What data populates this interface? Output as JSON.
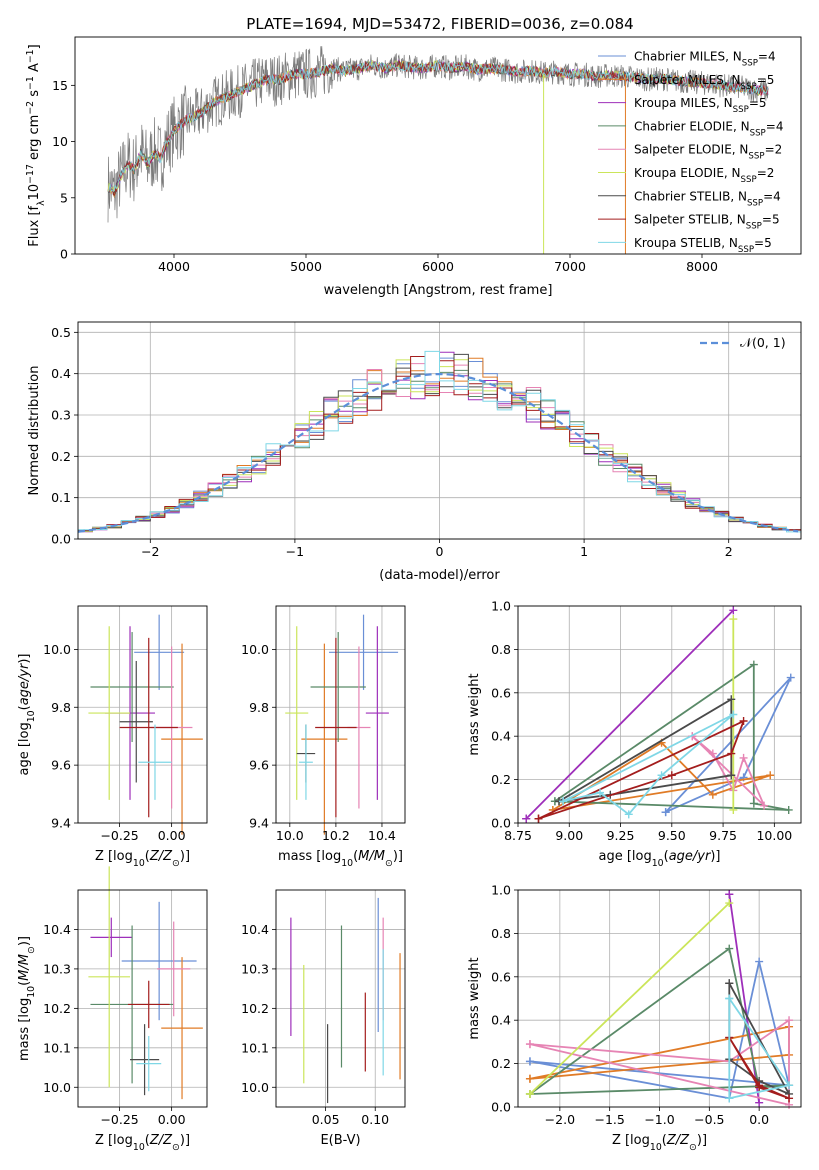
{
  "figure": {
    "title": "PLATE=1694, MJD=53472, FIBERID=0036, z=0.084"
  },
  "colors": {
    "axis": "#000000",
    "grid": "#b0b0b0",
    "gauss": "#5b8fd9",
    "series": [
      "#6a8fd6",
      "#e07b26",
      "#9e2fba",
      "#5a8a68",
      "#e684b4",
      "#cbe55a",
      "#4a4a4a",
      "#a31d1d",
      "#7fd7e6"
    ]
  },
  "chart_data": [
    {
      "id": "spectrum",
      "type": "line",
      "xlabel": "wavelength [Angstrom, rest frame]",
      "ylabel": "Flux [f_λ10^-17 erg cm^-2 s^-1 A^-1]",
      "xlim": [
        3250,
        8750
      ],
      "ylim": [
        0,
        19.3
      ],
      "xticks": [
        4000,
        5000,
        6000,
        7000,
        8000
      ],
      "yticks": [
        0,
        5,
        10,
        15
      ],
      "grid": false,
      "legend_position": "right",
      "observed": {
        "x": [
          3500,
          3550,
          3600,
          3650,
          3700,
          3750,
          3800,
          3850,
          3900,
          3950,
          4000,
          4100,
          4200,
          4300,
          4400,
          4500,
          4600,
          4700,
          4800,
          4900,
          5000,
          5100,
          5200,
          5300,
          5400,
          5500,
          5600,
          5700,
          5800,
          5900,
          6000,
          6100,
          6200,
          6300,
          6400,
          6500,
          6600,
          6700,
          6800,
          6900,
          7000,
          7100,
          7200,
          7300,
          7400,
          7500,
          7600,
          7700,
          7800,
          7900,
          8000,
          8100,
          8200,
          8300,
          8400,
          8500
        ],
        "y": [
          6.0,
          5.5,
          7.0,
          8.0,
          7.5,
          9.0,
          8.0,
          9.0,
          8.5,
          10.0,
          11.0,
          12.0,
          12.5,
          13.5,
          14.0,
          14.5,
          15.0,
          15.5,
          15.5,
          16.0,
          16.0,
          16.2,
          16.5,
          16.3,
          16.5,
          16.8,
          16.5,
          16.8,
          16.6,
          16.5,
          16.8,
          16.5,
          16.7,
          16.4,
          16.5,
          16.4,
          16.2,
          16.3,
          16.1,
          16.2,
          16.0,
          16.0,
          15.8,
          15.9,
          15.8,
          15.7,
          15.5,
          15.6,
          15.4,
          15.3,
          15.2,
          15.1,
          14.9,
          14.8,
          14.6,
          14.5
        ]
      },
      "series": [
        {
          "name": "Chabrier MILES, N_SSP=4",
          "label_main": "Chabrier MILES, N",
          "label_sub": "SSP",
          "label_tail": "=4"
        },
        {
          "name": "Salpeter MILES, N_SSP=5",
          "label_main": "Salpeter MILES, N",
          "label_sub": "SSP",
          "label_tail": "=5"
        },
        {
          "name": "Kroupa MILES, N_SSP=5",
          "label_main": "Kroupa MILES, N",
          "label_sub": "SSP",
          "label_tail": "=5"
        },
        {
          "name": "Chabrier ELODIE, N_SSP=4",
          "label_main": "Chabrier ELODIE, N",
          "label_sub": "SSP",
          "label_tail": "=4"
        },
        {
          "name": "Salpeter ELODIE, N_SSP=2",
          "label_main": "Salpeter ELODIE, N",
          "label_sub": "SSP",
          "label_tail": "=2"
        },
        {
          "name": "Kroupa ELODIE, N_SSP=2",
          "label_main": "Kroupa ELODIE, N",
          "label_sub": "SSP",
          "label_tail": "=2"
        },
        {
          "name": "Chabrier STELIB, N_SSP=4",
          "label_main": "Chabrier STELIB, N",
          "label_sub": "SSP",
          "label_tail": "=4"
        },
        {
          "name": "Salpeter STELIB, N_SSP=5",
          "label_main": "Salpeter STELIB, N",
          "label_sub": "SSP",
          "label_tail": "=5"
        },
        {
          "name": "Kroupa STELIB, N_SSP=5",
          "label_main": "Kroupa STELIB, N",
          "label_sub": "SSP",
          "label_tail": "=5"
        }
      ]
    },
    {
      "id": "residuals",
      "type": "line",
      "xlabel": "(data-model)/error",
      "ylabel": "Normed distribution",
      "xlim": [
        -2.5,
        2.5
      ],
      "ylim": [
        0,
        0.525
      ],
      "xticks": [
        -2,
        -1,
        0,
        1,
        2
      ],
      "yticks": [
        0.0,
        0.1,
        0.2,
        0.3,
        0.4,
        0.5
      ],
      "grid": true,
      "legend_position": "top-right",
      "gauss_label": "𝒩(0, 1)",
      "hist_bin_width": 0.1
    },
    {
      "id": "age_vs_Z",
      "type": "scatter",
      "xlabel": "Z [log10(Z/Z☉)]",
      "ylabel": "age  [log10(age/yr)]",
      "xlim": [
        -0.45,
        0.17
      ],
      "ylim": [
        9.4,
        10.15
      ],
      "xticks": [
        -0.25,
        0.0
      ],
      "yticks": [
        9.4,
        9.6,
        9.8,
        10.0
      ],
      "grid": true,
      "points": [
        {
          "x": -0.06,
          "y": 9.99,
          "xerr": 0.12,
          "yerr": 0.13
        },
        {
          "x": 0.05,
          "y": 9.69,
          "xerr": 0.1,
          "yerr": 0.33
        },
        {
          "x": -0.2,
          "y": 9.78,
          "xerr": 0.12,
          "yerr": 0.3
        },
        {
          "x": -0.19,
          "y": 9.87,
          "xerr": 0.2,
          "yerr": 0.19
        },
        {
          "x": 0.0,
          "y": 9.73,
          "xerr": 0.1,
          "yerr": 0.28
        },
        {
          "x": -0.3,
          "y": 9.78,
          "xerr": 0.1,
          "yerr": 0.3
        },
        {
          "x": -0.17,
          "y": 9.75,
          "xerr": 0.08,
          "yerr": 0.21
        },
        {
          "x": -0.11,
          "y": 9.73,
          "xerr": 0.14,
          "yerr": 0.31
        },
        {
          "x": -0.08,
          "y": 9.61,
          "xerr": 0.08,
          "yerr": 0.13
        }
      ]
    },
    {
      "id": "age_vs_mass",
      "type": "scatter",
      "xlabel": "mass [log10(M/M☉)]",
      "ylabel": "",
      "xlim": [
        9.94,
        10.5
      ],
      "ylim": [
        9.4,
        10.15
      ],
      "xticks": [
        10.0,
        10.2,
        10.4
      ],
      "yticks": [
        9.4,
        9.6,
        9.8,
        10.0
      ],
      "grid": true,
      "points": [
        {
          "x": 10.32,
          "y": 9.99,
          "xerr": 0.15,
          "yerr": 0.13
        },
        {
          "x": 10.15,
          "y": 9.69,
          "xerr": 0.1,
          "yerr": 0.33
        },
        {
          "x": 10.38,
          "y": 9.78,
          "xerr": 0.05,
          "yerr": 0.3
        },
        {
          "x": 10.21,
          "y": 9.87,
          "xerr": 0.12,
          "yerr": 0.19
        },
        {
          "x": 10.3,
          "y": 9.73,
          "xerr": 0.05,
          "yerr": 0.28
        },
        {
          "x": 10.03,
          "y": 9.78,
          "xerr": 0.05,
          "yerr": 0.3
        },
        {
          "x": 10.07,
          "y": 9.64,
          "xerr": 0.04,
          "yerr": 0.1
        },
        {
          "x": 10.2,
          "y": 9.73,
          "xerr": 0.09,
          "yerr": 0.31
        },
        {
          "x": 10.07,
          "y": 9.61,
          "xerr": 0.03,
          "yerr": 0.13
        }
      ]
    },
    {
      "id": "weight_vs_age",
      "type": "line",
      "xlabel": "age  [log10(age/yr)]",
      "ylabel": "mass weight",
      "xlim": [
        8.75,
        10.13
      ],
      "ylim": [
        0,
        1.0
      ],
      "xticks": [
        8.75,
        9.0,
        9.25,
        9.5,
        9.75,
        10.0
      ],
      "yticks": [
        0.0,
        0.2,
        0.4,
        0.6,
        0.8,
        1.0
      ],
      "grid": true,
      "series": [
        {
          "x": [
            9.47,
            9.85,
            10.08,
            9.47
          ],
          "y": [
            0.05,
            0.21,
            0.67,
            0.05
          ]
        },
        {
          "x": [
            8.92,
            9.45,
            9.7,
            9.98,
            8.92
          ],
          "y": [
            0.06,
            0.37,
            0.13,
            0.22,
            0.06
          ]
        },
        {
          "x": [
            8.79,
            9.8,
            8.79
          ],
          "y": [
            0.02,
            0.98,
            0.02
          ]
        },
        {
          "x": [
            8.93,
            9.9,
            9.9,
            10.07,
            8.93
          ],
          "y": [
            0.1,
            0.73,
            0.09,
            0.06,
            0.1
          ]
        },
        {
          "x": [
            9.6,
            9.7,
            9.8,
            9.85,
            9.95,
            9.6
          ],
          "y": [
            0.4,
            0.32,
            0.15,
            0.3,
            0.08,
            0.4
          ]
        },
        {
          "x": [
            9.8,
            9.8
          ],
          "y": [
            0.94,
            0.06
          ]
        },
        {
          "x": [
            8.95,
            9.79,
            9.79,
            9.2,
            8.95
          ],
          "y": [
            0.1,
            0.57,
            0.22,
            0.13,
            0.1
          ]
        },
        {
          "x": [
            8.85,
            9.5,
            9.79,
            9.85,
            8.85
          ],
          "y": [
            0.02,
            0.22,
            0.32,
            0.47,
            0.02
          ]
        },
        {
          "x": [
            8.97,
            9.15,
            9.29,
            9.45,
            9.8,
            8.97
          ],
          "y": [
            0.1,
            0.14,
            0.04,
            0.22,
            0.5,
            0.1
          ]
        }
      ]
    },
    {
      "id": "mass_vs_Z",
      "type": "scatter",
      "xlabel": "Z [log10(Z/Z☉)]",
      "ylabel": "mass [log10(M/M☉)]",
      "xlim": [
        -0.45,
        0.17
      ],
      "ylim": [
        9.95,
        10.5
      ],
      "xticks": [
        -0.25,
        0.0
      ],
      "yticks": [
        10.0,
        10.1,
        10.2,
        10.3,
        10.4
      ],
      "grid": true,
      "points": [
        {
          "x": -0.06,
          "y": 10.32,
          "xerr": 0.18,
          "yerr": 0.15
        },
        {
          "x": 0.05,
          "y": 10.15,
          "xerr": 0.1,
          "yerr": 0.18
        },
        {
          "x": -0.29,
          "y": 10.38,
          "xerr": 0.1,
          "yerr": 0.05
        },
        {
          "x": -0.19,
          "y": 10.21,
          "xerr": 0.2,
          "yerr": 0.2
        },
        {
          "x": 0.01,
          "y": 10.3,
          "xerr": 0.08,
          "yerr": 0.12
        },
        {
          "x": -0.3,
          "y": 10.28,
          "xerr": 0.1,
          "yerr": 0.28
        },
        {
          "x": -0.13,
          "y": 10.07,
          "xerr": 0.07,
          "yerr": 0.09
        },
        {
          "x": -0.11,
          "y": 10.21,
          "xerr": 0.1,
          "yerr": 0.06
        },
        {
          "x": -0.11,
          "y": 10.06,
          "xerr": 0.06,
          "yerr": 0.07
        }
      ]
    },
    {
      "id": "mass_vs_ebv",
      "type": "scatter",
      "xlabel": "E(B-V)",
      "ylabel": "",
      "xlim": [
        0.0,
        0.13
      ],
      "ylim": [
        9.95,
        10.5
      ],
      "xticks": [
        0.05,
        0.1
      ],
      "yticks": [
        10.0,
        10.1,
        10.2,
        10.3,
        10.4
      ],
      "grid": true,
      "points": [
        {
          "x": 0.103,
          "y": 10.31,
          "xerr": 0.0,
          "yerr": 0.17
        },
        {
          "x": 0.125,
          "y": 10.18,
          "xerr": 0.0,
          "yerr": 0.16
        },
        {
          "x": 0.015,
          "y": 10.28,
          "xerr": 0.0,
          "yerr": 0.15
        },
        {
          "x": 0.066,
          "y": 10.23,
          "xerr": 0.0,
          "yerr": 0.18
        },
        {
          "x": 0.108,
          "y": 10.3,
          "xerr": 0.0,
          "yerr": 0.13
        },
        {
          "x": 0.028,
          "y": 10.16,
          "xerr": 0.0,
          "yerr": 0.15
        },
        {
          "x": 0.052,
          "y": 10.06,
          "xerr": 0.0,
          "yerr": 0.1
        },
        {
          "x": 0.09,
          "y": 10.14,
          "xerr": 0.0,
          "yerr": 0.1
        },
        {
          "x": 0.108,
          "y": 10.19,
          "xerr": 0.0,
          "yerr": 0.16
        }
      ]
    },
    {
      "id": "weight_vs_Z",
      "type": "line",
      "xlabel": "Z [log10(Z/Z☉)]",
      "ylabel": "mass weight",
      "xlim": [
        -2.42,
        0.42
      ],
      "ylim": [
        0,
        1.0
      ],
      "xticks": [
        -2.0,
        -1.5,
        -1.0,
        -0.5,
        0.0
      ],
      "yticks": [
        0.0,
        0.2,
        0.4,
        0.6,
        0.8,
        1.0
      ],
      "grid": true,
      "series": [
        {
          "x": [
            -2.3,
            -0.3,
            0.0,
            0.3,
            -2.3
          ],
          "y": [
            0.21,
            0.04,
            0.67,
            0.1,
            0.21
          ]
        },
        {
          "x": [
            -2.3,
            0.3,
            0.3,
            -2.3
          ],
          "y": [
            0.13,
            0.37,
            0.24,
            0.13
          ]
        },
        {
          "x": [
            -0.3,
            0.0,
            -0.3
          ],
          "y": [
            0.98,
            0.02,
            0.98
          ]
        },
        {
          "x": [
            -2.3,
            -0.3,
            0.0,
            0.3,
            -2.3
          ],
          "y": [
            0.06,
            0.73,
            0.09,
            0.1,
            0.06
          ]
        },
        {
          "x": [
            -2.3,
            -0.3,
            0.3,
            0.3,
            -2.3
          ],
          "y": [
            0.29,
            0.21,
            0.4,
            0.01,
            0.29
          ]
        },
        {
          "x": [
            -2.3,
            -0.3,
            -2.3
          ],
          "y": [
            0.06,
            0.94,
            0.06
          ]
        },
        {
          "x": [
            -0.3,
            -0.3,
            0.0,
            0.3,
            -0.3
          ],
          "y": [
            0.57,
            0.22,
            0.12,
            0.06,
            0.57
          ]
        },
        {
          "x": [
            -0.3,
            0.0,
            0.3,
            0.0,
            -0.3
          ],
          "y": [
            0.32,
            0.1,
            0.04,
            0.09,
            0.32
          ]
        },
        {
          "x": [
            -0.3,
            -0.3,
            0.3,
            -0.3
          ],
          "y": [
            0.5,
            0.04,
            0.1,
            0.5
          ]
        }
      ]
    }
  ]
}
